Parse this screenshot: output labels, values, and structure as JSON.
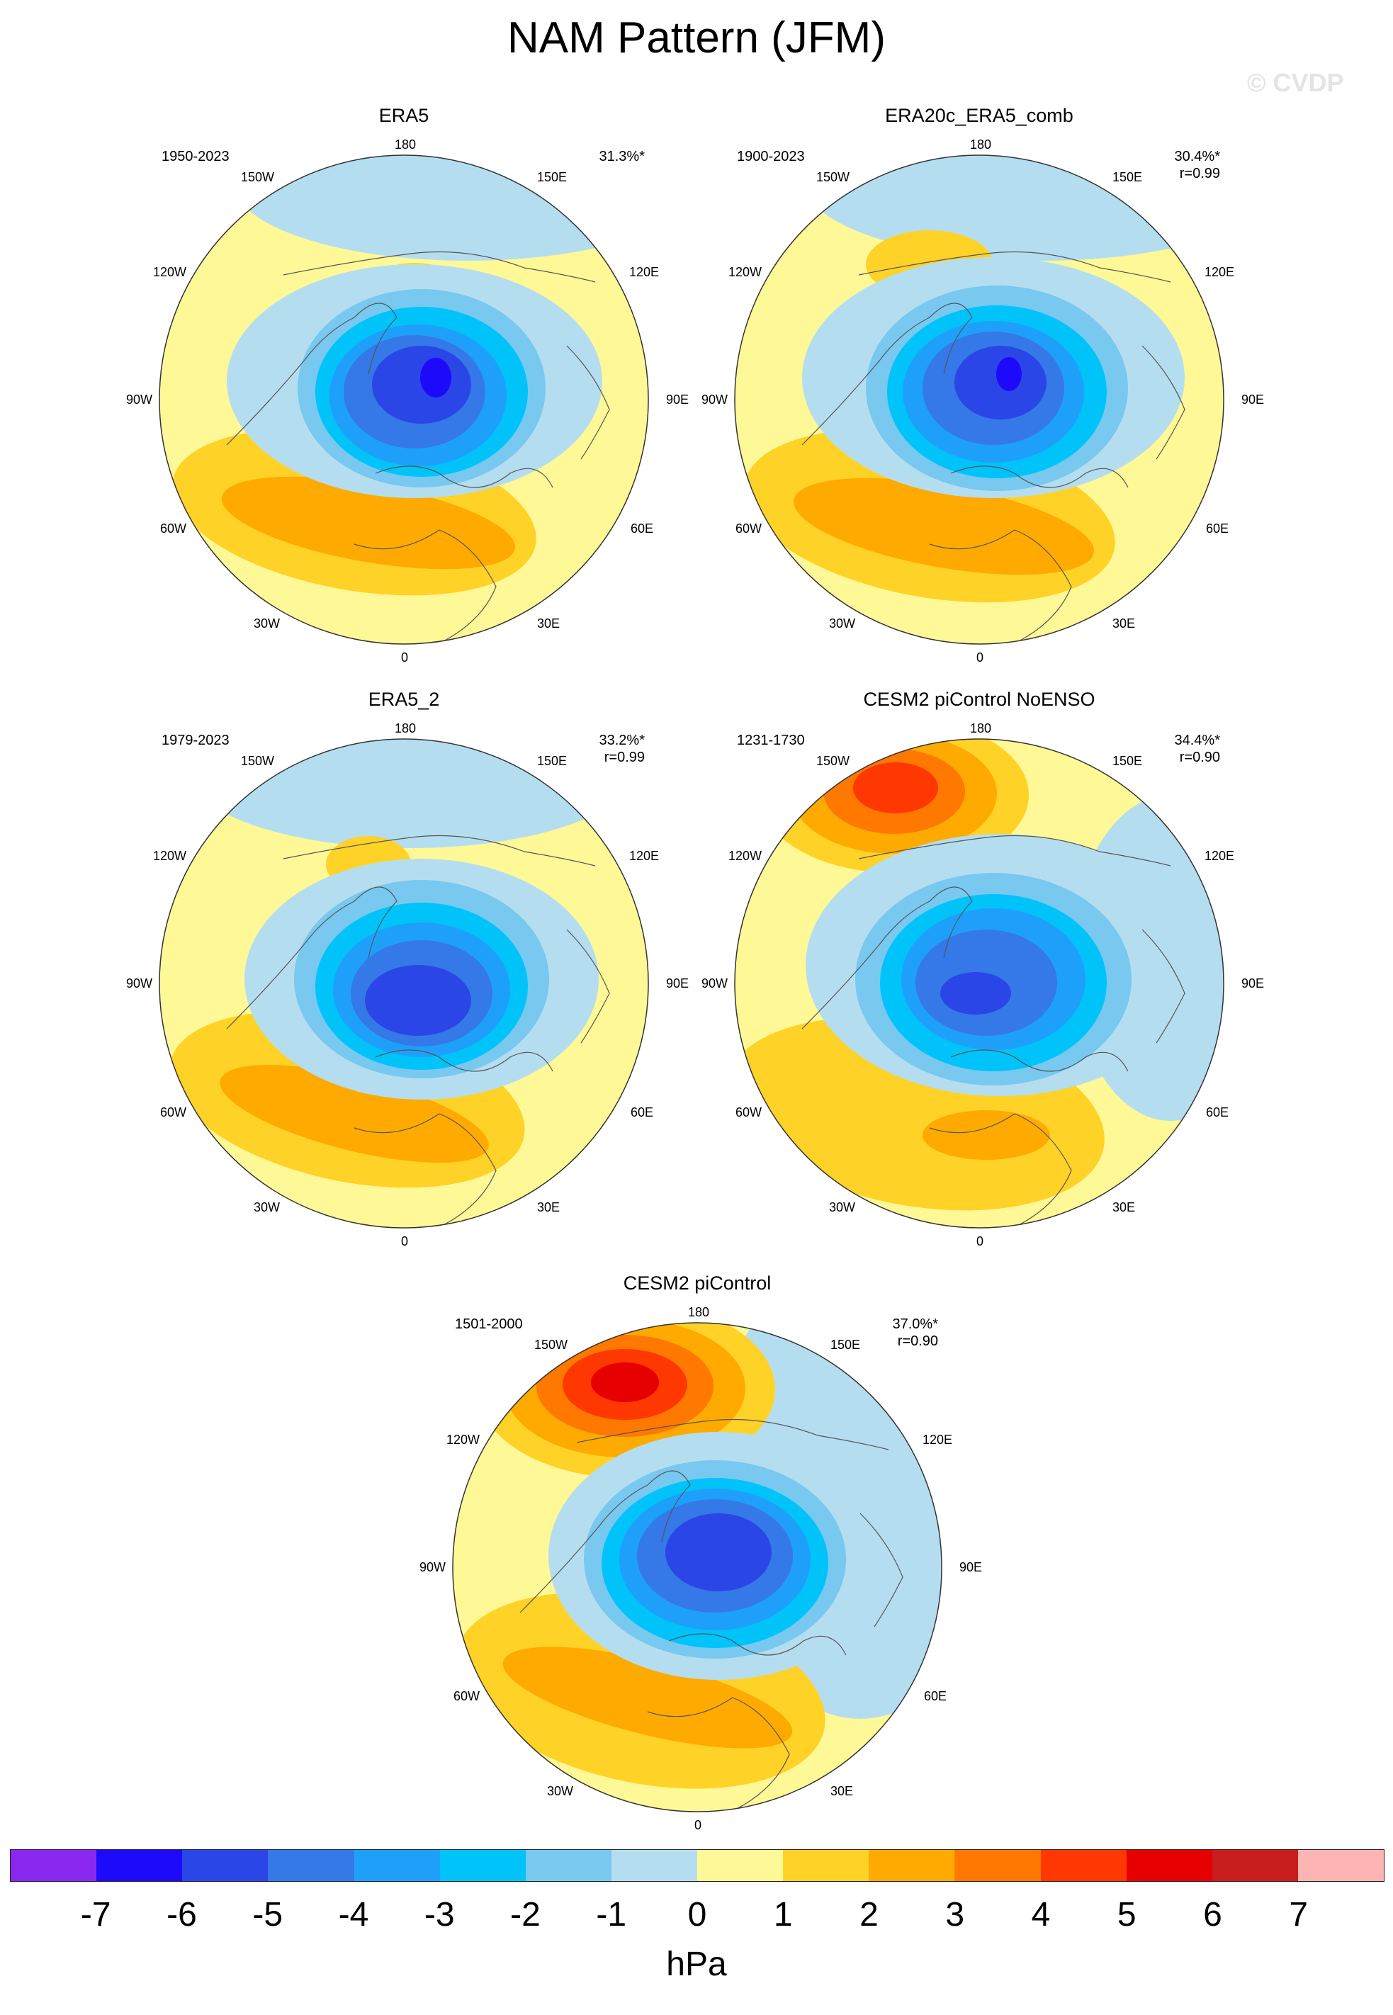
{
  "title": "NAM Pattern (JFM)",
  "watermark": "© CVDP",
  "units": "hPa",
  "ring_labels": {
    "top": "180",
    "tr": "150E",
    "tl": "150W",
    "r1": "120E",
    "l1": "120W",
    "r2": "90E",
    "l2": "90W",
    "r3": "60E",
    "l3": "60W",
    "br": "30E",
    "bl": "30W",
    "bottom": "0"
  },
  "panels": [
    {
      "name": "ERA5",
      "period": "1950-2023",
      "pct": "31.3%*",
      "r": "",
      "aleut": 1.5
    },
    {
      "name": "ERA20c_ERA5_comb",
      "period": "1900-2023",
      "pct": "30.4%*",
      "r": "r=0.99",
      "aleut": 2.0
    },
    {
      "name": "ERA5_2",
      "period": "1979-2023",
      "pct": "33.2%*",
      "r": "r=0.99",
      "aleut": 1.5
    },
    {
      "name": "CESM2 piControl NoENSO",
      "period": "1231-1730",
      "pct": "34.4%*",
      "r": "r=0.90",
      "aleut": 4.5
    },
    {
      "name": "CESM2 piControl",
      "period": "1501-2000",
      "pct": "37.0%*",
      "r": "r=0.90",
      "aleut": 5.5
    }
  ],
  "colorbar": {
    "colors": [
      "#8a28f0",
      "#1e0afa",
      "#2a46e6",
      "#3578e8",
      "#1ea0fa",
      "#00c3fa",
      "#78c8f0",
      "#b4def0",
      "#fff896",
      "#ffd228",
      "#ffaa00",
      "#ff7800",
      "#ff3700",
      "#e60000",
      "#c81e1e",
      "#ffb4b4"
    ],
    "ticks": [
      "-7",
      "-6",
      "-5",
      "-4",
      "-3",
      "-2",
      "-1",
      "0",
      "1",
      "2",
      "3",
      "4",
      "5",
      "6",
      "7"
    ]
  }
}
